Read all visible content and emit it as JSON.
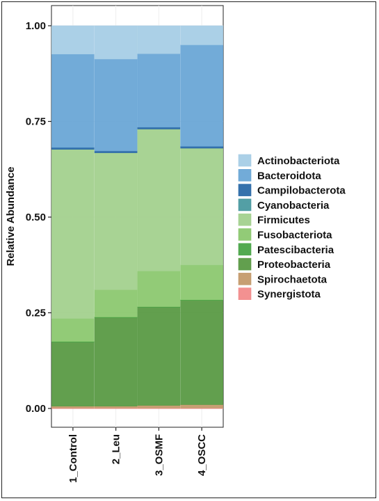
{
  "chart_data": {
    "type": "bar",
    "stacked": true,
    "orientation": "vertical",
    "ylabel": "Relative Abundance",
    "xlabel": "",
    "ylim": [
      0,
      1
    ],
    "yticks": [
      "0.00",
      "0.25",
      "0.50",
      "0.75",
      "1.00"
    ],
    "ytick_values": [
      0,
      0.25,
      0.5,
      0.75,
      1.0
    ],
    "categories": [
      "1_Control",
      "2_Leu",
      "3_OSMF",
      "4_OSCC"
    ],
    "legend_position": "right",
    "series": [
      {
        "name": "Synergistota",
        "color": "#f28b8b",
        "values": [
          0.001,
          0.001,
          0.001,
          0.001
        ]
      },
      {
        "name": "Spirochaetota",
        "color": "#c49a6c",
        "values": [
          0.005,
          0.005,
          0.007,
          0.009
        ]
      },
      {
        "name": "Proteobacteria",
        "color": "#5a9a45",
        "values": [
          0.168,
          0.232,
          0.257,
          0.273
        ]
      },
      {
        "name": "Patescibacteria",
        "color": "#4aa548",
        "values": [
          0.001,
          0.001,
          0.001,
          0.001
        ]
      },
      {
        "name": "Fusobacteriota",
        "color": "#8cc870",
        "values": [
          0.06,
          0.071,
          0.093,
          0.091
        ]
      },
      {
        "name": "Firmicutes",
        "color": "#a3d18e",
        "values": [
          0.442,
          0.358,
          0.371,
          0.305
        ]
      },
      {
        "name": "Cyanobacteria",
        "color": "#4a9aa0",
        "values": [
          0.0,
          0.0,
          0.0,
          0.0
        ]
      },
      {
        "name": "Campilobacterota",
        "color": "#2b6aa8",
        "values": [
          0.005,
          0.005,
          0.005,
          0.005
        ]
      },
      {
        "name": "Bacteroidota",
        "color": "#6aa6d6",
        "values": [
          0.244,
          0.24,
          0.192,
          0.265
        ]
      },
      {
        "name": "Actinobacteriota",
        "color": "#a7cde6",
        "values": [
          0.074,
          0.087,
          0.073,
          0.05
        ]
      }
    ],
    "legend_order": [
      "Actinobacteriota",
      "Bacteroidota",
      "Campilobacterota",
      "Cyanobacteria",
      "Firmicutes",
      "Fusobacteriota",
      "Patescibacteria",
      "Proteobacteria",
      "Spirochaetota",
      "Synergistota"
    ],
    "grid": true
  }
}
